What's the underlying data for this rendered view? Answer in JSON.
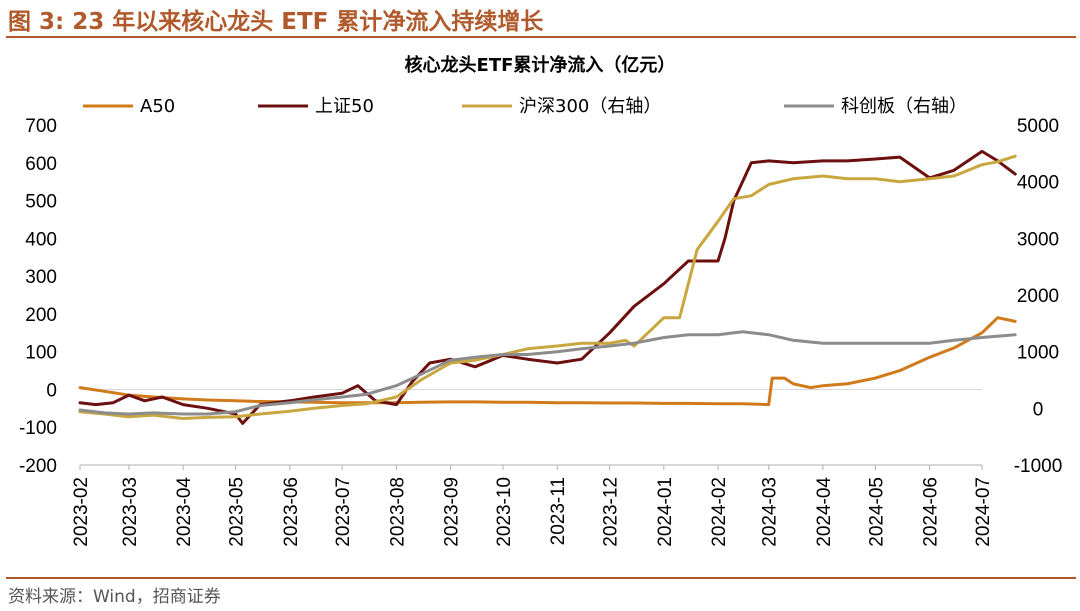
{
  "figure": {
    "title": "图 3:  23 年以来核心龙头 ETF 累计净流入持续增长",
    "source": "资料来源：Wind，招商证券"
  },
  "colors": {
    "accent": "#b05a2c",
    "A50": "#d07a1a",
    "sz50": "#6b0f0f",
    "hs300": "#c8a640",
    "kcb": "#8c8c8c"
  },
  "chart_data": {
    "type": "line",
    "title": "核心龙头ETF累计净流入（亿元）",
    "x_ticks": [
      "2023-02",
      "2023-03",
      "2023-04",
      "2023-05",
      "2023-06",
      "2023-07",
      "2023-08",
      "2023-09",
      "2023-10",
      "2023-11",
      "2023-12",
      "2024-01",
      "2024-02",
      "2024-03",
      "2024-04",
      "2024-05",
      "2024-06",
      "2024-07"
    ],
    "ylim_left": [
      -200,
      700
    ],
    "yticks_left": [
      "700",
      "600",
      "500",
      "400",
      "300",
      "200",
      "100",
      "0",
      "-100",
      "-200"
    ],
    "ylim_right": [
      -1000,
      5000
    ],
    "yticks_right": [
      "5000",
      "4000",
      "3000",
      "2000",
      "1000",
      "0",
      "-1000"
    ],
    "legend_position": "top",
    "grid": false,
    "series": [
      {
        "name": "A50",
        "axis": "left",
        "points": [
          [
            "2023-02-01",
            5
          ],
          [
            "2023-02-15",
            -5
          ],
          [
            "2023-03-01",
            -15
          ],
          [
            "2023-03-15",
            -20
          ],
          [
            "2023-04-01",
            -25
          ],
          [
            "2023-04-15",
            -28
          ],
          [
            "2023-05-01",
            -30
          ],
          [
            "2023-05-15",
            -32
          ],
          [
            "2023-06-01",
            -33
          ],
          [
            "2023-06-15",
            -34
          ],
          [
            "2023-07-01",
            -35
          ],
          [
            "2023-07-15",
            -35
          ],
          [
            "2023-08-01",
            -35
          ],
          [
            "2023-08-15",
            -34
          ],
          [
            "2023-09-01",
            -33
          ],
          [
            "2023-09-15",
            -33
          ],
          [
            "2023-10-01",
            -34
          ],
          [
            "2023-10-15",
            -34
          ],
          [
            "2023-11-01",
            -35
          ],
          [
            "2023-11-15",
            -35
          ],
          [
            "2023-12-01",
            -36
          ],
          [
            "2023-12-15",
            -36
          ],
          [
            "2024-01-01",
            -37
          ],
          [
            "2024-01-15",
            -37
          ],
          [
            "2024-02-01",
            -38
          ],
          [
            "2024-02-15",
            -38
          ],
          [
            "2024-03-01",
            -40
          ],
          [
            "2024-03-03",
            30
          ],
          [
            "2024-03-10",
            30
          ],
          [
            "2024-03-15",
            15
          ],
          [
            "2024-03-25",
            5
          ],
          [
            "2024-04-01",
            10
          ],
          [
            "2024-04-15",
            15
          ],
          [
            "2024-05-01",
            30
          ],
          [
            "2024-05-15",
            50
          ],
          [
            "2024-06-01",
            85
          ],
          [
            "2024-06-15",
            110
          ],
          [
            "2024-07-01",
            150
          ],
          [
            "2024-07-10",
            190
          ],
          [
            "2024-07-20",
            180
          ]
        ]
      },
      {
        "name": "上证50",
        "axis": "left",
        "points": [
          [
            "2023-02-01",
            -35
          ],
          [
            "2023-02-10",
            -40
          ],
          [
            "2023-02-20",
            -35
          ],
          [
            "2023-03-01",
            -15
          ],
          [
            "2023-03-10",
            -30
          ],
          [
            "2023-03-20",
            -20
          ],
          [
            "2023-04-01",
            -40
          ],
          [
            "2023-04-15",
            -50
          ],
          [
            "2023-05-01",
            -65
          ],
          [
            "2023-05-05",
            -90
          ],
          [
            "2023-05-15",
            -40
          ],
          [
            "2023-06-01",
            -30
          ],
          [
            "2023-06-15",
            -20
          ],
          [
            "2023-07-01",
            -10
          ],
          [
            "2023-07-10",
            10
          ],
          [
            "2023-07-20",
            -30
          ],
          [
            "2023-08-01",
            -40
          ],
          [
            "2023-08-10",
            20
          ],
          [
            "2023-08-20",
            70
          ],
          [
            "2023-09-01",
            80
          ],
          [
            "2023-09-15",
            60
          ],
          [
            "2023-10-01",
            90
          ],
          [
            "2023-10-15",
            80
          ],
          [
            "2023-11-01",
            70
          ],
          [
            "2023-11-15",
            80
          ],
          [
            "2023-12-01",
            150
          ],
          [
            "2023-12-15",
            220
          ],
          [
            "2024-01-01",
            280
          ],
          [
            "2024-01-15",
            340
          ],
          [
            "2024-02-01",
            340
          ],
          [
            "2024-02-05",
            400
          ],
          [
            "2024-02-10",
            500
          ],
          [
            "2024-02-20",
            600
          ],
          [
            "2024-03-01",
            605
          ],
          [
            "2024-03-15",
            600
          ],
          [
            "2024-04-01",
            605
          ],
          [
            "2024-04-15",
            605
          ],
          [
            "2024-05-01",
            610
          ],
          [
            "2024-05-15",
            615
          ],
          [
            "2024-06-01",
            560
          ],
          [
            "2024-06-15",
            580
          ],
          [
            "2024-07-01",
            630
          ],
          [
            "2024-07-10",
            605
          ],
          [
            "2024-07-20",
            570
          ]
        ]
      },
      {
        "name": "沪深300（右轴）",
        "axis": "right",
        "points": [
          [
            "2023-02-01",
            -60
          ],
          [
            "2023-02-15",
            -100
          ],
          [
            "2023-03-01",
            -150
          ],
          [
            "2023-03-15",
            -120
          ],
          [
            "2023-04-01",
            -180
          ],
          [
            "2023-04-15",
            -160
          ],
          [
            "2023-05-01",
            -150
          ],
          [
            "2023-05-15",
            -100
          ],
          [
            "2023-06-01",
            -50
          ],
          [
            "2023-06-15",
            0
          ],
          [
            "2023-07-01",
            50
          ],
          [
            "2023-07-15",
            80
          ],
          [
            "2023-08-01",
            200
          ],
          [
            "2023-08-15",
            500
          ],
          [
            "2023-09-01",
            800
          ],
          [
            "2023-09-15",
            850
          ],
          [
            "2023-10-01",
            950
          ],
          [
            "2023-10-15",
            1050
          ],
          [
            "2023-11-01",
            1100
          ],
          [
            "2023-11-15",
            1150
          ],
          [
            "2023-12-01",
            1150
          ],
          [
            "2023-12-10",
            1200
          ],
          [
            "2023-12-15",
            1100
          ],
          [
            "2024-01-01",
            1600
          ],
          [
            "2024-01-10",
            1600
          ],
          [
            "2024-01-20",
            2800
          ],
          [
            "2024-02-01",
            3300
          ],
          [
            "2024-02-10",
            3700
          ],
          [
            "2024-02-20",
            3750
          ],
          [
            "2024-03-01",
            3950
          ],
          [
            "2024-03-15",
            4050
          ],
          [
            "2024-04-01",
            4100
          ],
          [
            "2024-04-15",
            4050
          ],
          [
            "2024-05-01",
            4050
          ],
          [
            "2024-05-15",
            4000
          ],
          [
            "2024-06-01",
            4050
          ],
          [
            "2024-06-15",
            4100
          ],
          [
            "2024-07-01",
            4300
          ],
          [
            "2024-07-10",
            4350
          ],
          [
            "2024-07-20",
            4450
          ]
        ]
      },
      {
        "name": "科创板（右轴）",
        "axis": "right",
        "points": [
          [
            "2023-02-01",
            -30
          ],
          [
            "2023-02-15",
            -80
          ],
          [
            "2023-03-01",
            -100
          ],
          [
            "2023-03-15",
            -80
          ],
          [
            "2023-04-01",
            -100
          ],
          [
            "2023-04-15",
            -100
          ],
          [
            "2023-05-01",
            -60
          ],
          [
            "2023-05-15",
            50
          ],
          [
            "2023-06-01",
            100
          ],
          [
            "2023-06-15",
            150
          ],
          [
            "2023-07-01",
            200
          ],
          [
            "2023-07-15",
            250
          ],
          [
            "2023-08-01",
            400
          ],
          [
            "2023-08-15",
            600
          ],
          [
            "2023-09-01",
            850
          ],
          [
            "2023-09-15",
            900
          ],
          [
            "2023-10-01",
            950
          ],
          [
            "2023-10-15",
            950
          ],
          [
            "2023-11-01",
            1000
          ],
          [
            "2023-11-15",
            1050
          ],
          [
            "2023-12-01",
            1100
          ],
          [
            "2023-12-15",
            1150
          ],
          [
            "2024-01-01",
            1250
          ],
          [
            "2024-01-15",
            1300
          ],
          [
            "2024-02-01",
            1300
          ],
          [
            "2024-02-15",
            1350
          ],
          [
            "2024-03-01",
            1300
          ],
          [
            "2024-03-15",
            1200
          ],
          [
            "2024-04-01",
            1150
          ],
          [
            "2024-04-15",
            1150
          ],
          [
            "2024-05-01",
            1150
          ],
          [
            "2024-05-15",
            1150
          ],
          [
            "2024-06-01",
            1150
          ],
          [
            "2024-06-15",
            1200
          ],
          [
            "2024-07-01",
            1250
          ],
          [
            "2024-07-20",
            1300
          ]
        ]
      }
    ]
  }
}
